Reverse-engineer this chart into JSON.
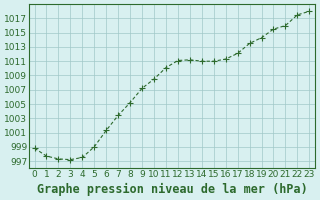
{
  "x": [
    0,
    1,
    2,
    3,
    4,
    5,
    6,
    7,
    8,
    9,
    10,
    11,
    12,
    13,
    14,
    15,
    16,
    17,
    18,
    19,
    20,
    21,
    22,
    23
  ],
  "y": [
    998.8,
    997.7,
    997.3,
    997.2,
    997.5,
    999.0,
    1001.3,
    1003.4,
    1005.2,
    1007.2,
    1008.5,
    1010.1,
    1011.1,
    1011.2,
    1011.0,
    1011.0,
    1011.3,
    1012.1,
    1013.5,
    1014.3,
    1015.5,
    1016.0,
    1017.5,
    1018.0
  ],
  "line_color": "#2d6a2d",
  "marker": "+",
  "bg_color": "#d8f0f0",
  "grid_color": "#a0c8c8",
  "title": "Graphe pression niveau de la mer (hPa)",
  "xlim": [
    -0.5,
    23.5
  ],
  "ylim": [
    996,
    1019
  ],
  "yticks": [
    997,
    999,
    1001,
    1003,
    1005,
    1007,
    1009,
    1011,
    1013,
    1015,
    1017
  ],
  "xticks": [
    0,
    1,
    2,
    3,
    4,
    5,
    6,
    7,
    8,
    9,
    10,
    11,
    12,
    13,
    14,
    15,
    16,
    17,
    18,
    19,
    20,
    21,
    22,
    23
  ],
  "title_fontsize": 8.5,
  "tick_fontsize": 6.5,
  "title_color": "#2d6a2d",
  "tick_color": "#2d6a2d",
  "spine_color": "#2d6a2d"
}
